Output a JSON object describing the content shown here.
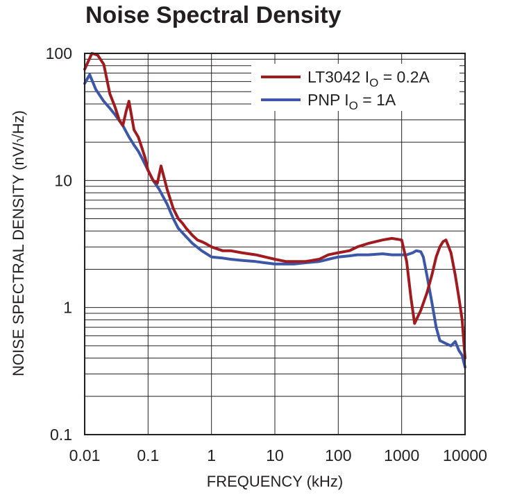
{
  "chart_data": {
    "type": "line",
    "title": "Noise Spectral Density",
    "xlabel": "FREQUENCY (kHz)",
    "ylabel": "NOISE SPECTRAL DENSITY (nV/√Hz)",
    "x_scale": "log",
    "y_scale": "log",
    "xlim": [
      0.01,
      10000
    ],
    "ylim": [
      0.1,
      100
    ],
    "grid": true,
    "legend_position": "top-right",
    "x_tick_labels": [
      "0.01",
      "0.1",
      "1",
      "10",
      "100",
      "1000",
      "10000"
    ],
    "y_tick_labels": [
      "0.1",
      "1",
      "10",
      "100"
    ],
    "series": [
      {
        "name": "LT3042 IO = 0.2A",
        "legend_main": "LT3042 I",
        "legend_sub": "O",
        "legend_tail": " = 0.2A",
        "color": "#9e1b20",
        "x": [
          0.01,
          0.013,
          0.016,
          0.02,
          0.025,
          0.03,
          0.035,
          0.04,
          0.045,
          0.05,
          0.06,
          0.07,
          0.08,
          0.09,
          0.1,
          0.12,
          0.14,
          0.16,
          0.2,
          0.25,
          0.3,
          0.35,
          0.4,
          0.5,
          0.6,
          0.7,
          0.8,
          1,
          1.5,
          2,
          3,
          5,
          7,
          10,
          15,
          20,
          30,
          50,
          70,
          100,
          150,
          200,
          300,
          500,
          700,
          1000,
          1200,
          1400,
          1600,
          1800,
          2000,
          2500,
          3000,
          3500,
          4000,
          4500,
          5000,
          6000,
          7000,
          8000,
          9000,
          10000
        ],
        "y": [
          75,
          100,
          97,
          82,
          48,
          38,
          30,
          27,
          35,
          42,
          25,
          22,
          18,
          15,
          12,
          10,
          9.5,
          13,
          8.5,
          6,
          5,
          4.6,
          4.2,
          3.7,
          3.4,
          3.3,
          3.2,
          3.0,
          2.8,
          2.8,
          2.7,
          2.6,
          2.5,
          2.4,
          2.3,
          2.3,
          2.3,
          2.4,
          2.6,
          2.7,
          2.8,
          3.0,
          3.2,
          3.4,
          3.5,
          3.4,
          2.3,
          1.2,
          0.75,
          0.85,
          0.95,
          1.3,
          1.8,
          2.5,
          3.0,
          3.3,
          3.4,
          2.7,
          1.8,
          1.2,
          0.8,
          0.4
        ]
      },
      {
        "name": "PNP IO = 1A",
        "legend_main": "PNP I",
        "legend_sub": "O",
        "legend_tail": " = 1A",
        "color": "#3c57a6",
        "x": [
          0.01,
          0.012,
          0.015,
          0.02,
          0.025,
          0.03,
          0.04,
          0.05,
          0.06,
          0.07,
          0.08,
          0.1,
          0.12,
          0.15,
          0.2,
          0.25,
          0.3,
          0.4,
          0.5,
          0.7,
          1,
          1.5,
          2,
          3,
          5,
          7,
          10,
          15,
          20,
          30,
          50,
          70,
          100,
          150,
          200,
          300,
          500,
          700,
          1000,
          1200,
          1500,
          1700,
          2000,
          2200,
          2500,
          3000,
          3500,
          4000,
          5000,
          6000,
          7000,
          8000,
          9000,
          10000
        ],
        "y": [
          58,
          68,
          52,
          42,
          37,
          33,
          27,
          22,
          19,
          17,
          15,
          12,
          10,
          8.5,
          6.5,
          5,
          4.2,
          3.6,
          3.2,
          2.8,
          2.5,
          2.45,
          2.4,
          2.35,
          2.3,
          2.25,
          2.2,
          2.2,
          2.2,
          2.25,
          2.3,
          2.4,
          2.5,
          2.55,
          2.6,
          2.6,
          2.65,
          2.6,
          2.6,
          2.6,
          2.7,
          2.8,
          2.75,
          2.5,
          1.8,
          1.1,
          0.7,
          0.55,
          0.52,
          0.5,
          0.54,
          0.46,
          0.42,
          0.34
        ]
      }
    ]
  }
}
